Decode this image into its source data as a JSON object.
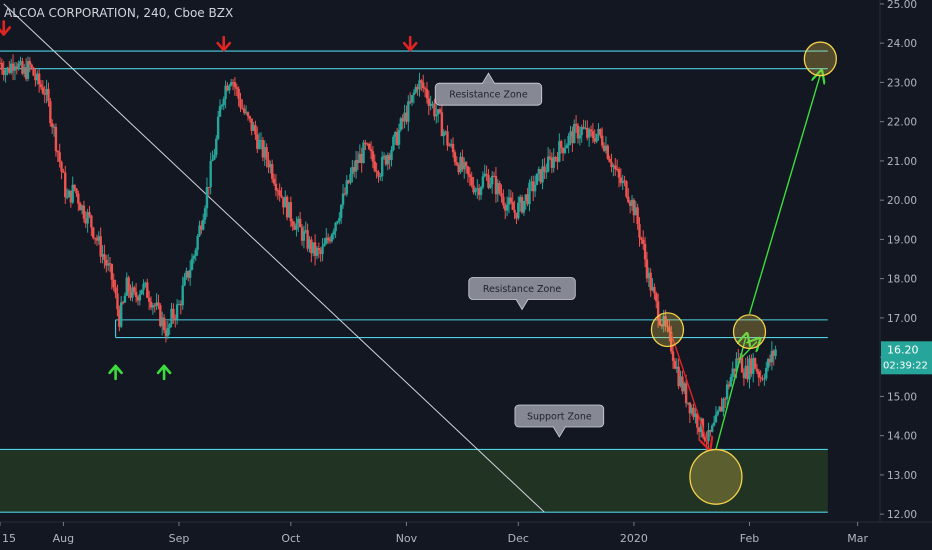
{
  "header": {
    "title": "ALCOA CORPORATION, 240, Cboe BZX"
  },
  "colors": {
    "background": "#131722",
    "up": "#26a69a",
    "down": "#ef5350",
    "zone_line": "#4dd0e1",
    "support_fill": "#243a24",
    "callout": "#868993",
    "circle": "#f5d24a",
    "green_arrow": "#3cdc3c",
    "red_arrow": "#e02424",
    "trendline": "#d1d4dc",
    "axis_text": "#b2b5be",
    "price_label": "#26a69a"
  },
  "chart_data": {
    "type": "candlestick",
    "y_axis": {
      "ylim": [
        11.8,
        25.1
      ],
      "ticks": [
        "25.00",
        "24.00",
        "23.00",
        "22.00",
        "21.00",
        "20.00",
        "19.00",
        "18.00",
        "17.00",
        "16.00",
        "15.00",
        "14.00",
        "13.00",
        "12.00"
      ]
    },
    "x_axis": {
      "ticks": [
        {
          "label": "15",
          "day": 0
        },
        {
          "label": "Aug",
          "day": 17
        },
        {
          "label": "Sep",
          "day": 48
        },
        {
          "label": "Oct",
          "day": 78
        },
        {
          "label": "Nov",
          "day": 109
        },
        {
          "label": "Dec",
          "day": 139
        },
        {
          "label": "2020",
          "day": 170
        },
        {
          "label": "Feb",
          "day": 201
        },
        {
          "label": "Mar",
          "day": 230
        }
      ],
      "xlim": [
        0,
        236
      ]
    },
    "last_price": {
      "value": "16.20",
      "countdown": "02:39:22"
    },
    "closes": [
      [
        0,
        23.5
      ],
      [
        2,
        23.3
      ],
      [
        4,
        23.6
      ],
      [
        6,
        23.2
      ],
      [
        8,
        23.4
      ],
      [
        10,
        23.0
      ],
      [
        12,
        22.8
      ],
      [
        14,
        22.0
      ],
      [
        16,
        21.0
      ],
      [
        18,
        20.0
      ],
      [
        20,
        20.3
      ],
      [
        22,
        19.8
      ],
      [
        24,
        19.5
      ],
      [
        26,
        19.0
      ],
      [
        28,
        18.5
      ],
      [
        30,
        18.0
      ],
      [
        32,
        17.0
      ],
      [
        33,
        17.3
      ],
      [
        34,
        17.8
      ],
      [
        36,
        17.5
      ],
      [
        38,
        17.8
      ],
      [
        40,
        17.6
      ],
      [
        42,
        17.2
      ],
      [
        44,
        16.8
      ],
      [
        45,
        16.6
      ],
      [
        46,
        17.0
      ],
      [
        48,
        17.3
      ],
      [
        49,
        17.7
      ],
      [
        50,
        18.0
      ],
      [
        52,
        18.6
      ],
      [
        54,
        19.5
      ],
      [
        56,
        20.5
      ],
      [
        58,
        21.5
      ],
      [
        59,
        22.3
      ],
      [
        60,
        22.8
      ],
      [
        62,
        23.2
      ],
      [
        64,
        22.6
      ],
      [
        66,
        22.1
      ],
      [
        68,
        21.8
      ],
      [
        70,
        21.3
      ],
      [
        72,
        21.0
      ],
      [
        74,
        20.5
      ],
      [
        76,
        20.0
      ],
      [
        78,
        19.6
      ],
      [
        80,
        19.3
      ],
      [
        82,
        19.0
      ],
      [
        84,
        18.7
      ],
      [
        86,
        18.6
      ],
      [
        88,
        19.0
      ],
      [
        90,
        19.5
      ],
      [
        92,
        20.0
      ],
      [
        94,
        20.6
      ],
      [
        96,
        21.0
      ],
      [
        98,
        21.3
      ],
      [
        100,
        21.0
      ],
      [
        102,
        20.8
      ],
      [
        104,
        21.2
      ],
      [
        106,
        21.5
      ],
      [
        108,
        22.0
      ],
      [
        110,
        22.4
      ],
      [
        112,
        23.0
      ],
      [
        114,
        22.8
      ],
      [
        116,
        22.4
      ],
      [
        118,
        22.0
      ],
      [
        120,
        21.5
      ],
      [
        122,
        21.1
      ],
      [
        124,
        20.8
      ],
      [
        126,
        20.5
      ],
      [
        128,
        20.3
      ],
      [
        130,
        20.6
      ],
      [
        132,
        20.5
      ],
      [
        134,
        20.2
      ],
      [
        136,
        19.9
      ],
      [
        138,
        19.7
      ],
      [
        140,
        19.9
      ],
      [
        142,
        20.2
      ],
      [
        144,
        20.5
      ],
      [
        146,
        20.8
      ],
      [
        148,
        21.0
      ],
      [
        150,
        21.3
      ],
      [
        152,
        21.5
      ],
      [
        154,
        21.7
      ],
      [
        156,
        21.8
      ],
      [
        158,
        21.6
      ],
      [
        160,
        21.7
      ],
      [
        162,
        21.5
      ],
      [
        164,
        21.0
      ],
      [
        166,
        20.5
      ],
      [
        168,
        20.3
      ],
      [
        170,
        19.8
      ],
      [
        172,
        19.0
      ],
      [
        174,
        18.0
      ],
      [
        176,
        17.3
      ],
      [
        178,
        16.8
      ],
      [
        180,
        16.3
      ],
      [
        182,
        15.5
      ],
      [
        184,
        15.0
      ],
      [
        186,
        14.6
      ],
      [
        188,
        14.2
      ],
      [
        190,
        13.9
      ],
      [
        192,
        14.3
      ],
      [
        194,
        14.9
      ],
      [
        196,
        15.5
      ],
      [
        198,
        16.0
      ],
      [
        200,
        15.6
      ],
      [
        202,
        15.9
      ],
      [
        204,
        15.5
      ],
      [
        206,
        15.8
      ],
      [
        208,
        16.2
      ]
    ],
    "annotations": {
      "resistance_top": {
        "lines": [
          23.8,
          23.35
        ],
        "day_range": [
          0,
          222
        ]
      },
      "resistance_mid": {
        "lines": [
          16.95,
          16.5
        ],
        "day_range": [
          31,
          222
        ]
      },
      "support": {
        "lines": [
          13.65,
          12.05
        ],
        "day_range": [
          0,
          222
        ]
      },
      "trendline": {
        "from": [
          1,
          25.0
        ],
        "to": [
          146,
          12.05
        ]
      },
      "callouts": [
        {
          "label": "Resistance Zone",
          "day": 131,
          "price": 22.7,
          "pointer": "up"
        },
        {
          "label": "Resistance Zone",
          "day": 140,
          "price": 17.75,
          "pointer": "down"
        },
        {
          "label": "Support Zone",
          "day": 150,
          "price": 14.5,
          "pointer": "down"
        }
      ],
      "red_down_arrows": [
        {
          "day": 1,
          "price": 24.4
        },
        {
          "day": 60,
          "price": 24.0
        },
        {
          "day": 110,
          "price": 24.0
        }
      ],
      "green_up_arrows": [
        {
          "day": 31,
          "price": 15.6
        },
        {
          "day": 44,
          "price": 15.6
        }
      ],
      "circles": [
        {
          "day": 179,
          "price": 16.7,
          "r": 16
        },
        {
          "day": 201,
          "price": 16.65,
          "r": 16
        },
        {
          "day": 220,
          "price": 23.6,
          "r": 16
        },
        {
          "day": 192,
          "price": 12.95,
          "r": 26
        }
      ],
      "red_path": [
        [
          180,
          16.6
        ],
        [
          190,
          13.75
        ]
      ],
      "green_paths": [
        [
          [
            192,
            13.65
          ],
          [
            200,
            16.5
          ]
        ],
        [
          [
            201,
            17.1
          ],
          [
            220,
            23.2
          ]
        ],
        [
          [
            199,
            16.0
          ],
          [
            203,
            16.4
          ]
        ]
      ]
    }
  }
}
